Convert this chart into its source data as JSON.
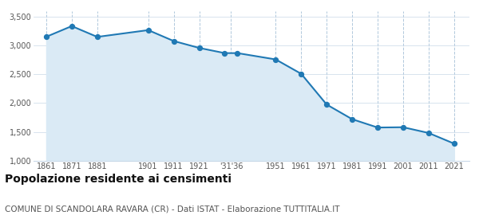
{
  "population": [
    3154,
    3340,
    3152,
    3270,
    3080,
    2960,
    2870,
    2870,
    2760,
    2510,
    1975,
    1720,
    1575,
    1580,
    1480,
    1295
  ],
  "x_positions": [
    0,
    1,
    2,
    4,
    5,
    6,
    7,
    7.5,
    9,
    10,
    11,
    12,
    13,
    14,
    15,
    16
  ],
  "xtick_positions": [
    0,
    1,
    2,
    4,
    5,
    6,
    7.25,
    9,
    10,
    11,
    12,
    13,
    14,
    15,
    16
  ],
  "xtick_labels": [
    "1861",
    "1871",
    "1881",
    "1901",
    "1911",
    "1921",
    "'31'36",
    "1951",
    "1961",
    "1971",
    "1981",
    "1991",
    "2001",
    "2011",
    "2021"
  ],
  "ylim": [
    1000,
    3600
  ],
  "yticks": [
    1000,
    1500,
    2000,
    2500,
    3000,
    3500
  ],
  "ytick_labels": [
    "1,000",
    "1,500",
    "2,000",
    "2,500",
    "3,000",
    "3,500"
  ],
  "line_color": "#2079b4",
  "fill_color": "#daeaf5",
  "marker_color": "#2079b4",
  "background_color": "#ffffff",
  "grid_color_x": "#b0c8dc",
  "grid_color_y": "#c8d8e8",
  "title": "Popolazione residente ai censimenti",
  "subtitle": "COMUNE DI SCANDOLARA RAVARA (CR) - Dati ISTAT - Elaborazione TUTTITALIA.IT",
  "title_fontsize": 10,
  "subtitle_fontsize": 7.5
}
